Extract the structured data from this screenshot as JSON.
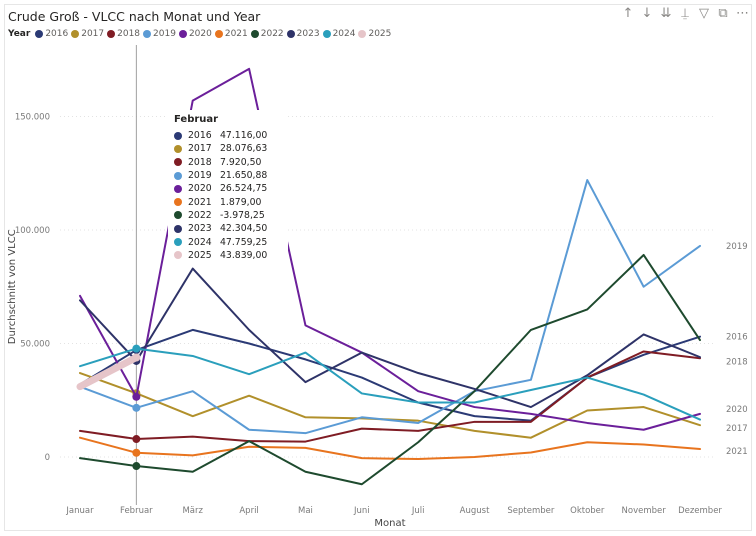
{
  "visual": {
    "title": "Crude Groß - VLCC nach Monat und Year",
    "toolbar": [
      {
        "name": "sort-up-icon",
        "glyph": "↑"
      },
      {
        "name": "sort-down-icon",
        "glyph": "↓"
      },
      {
        "name": "expand-all-icon",
        "glyph": "⇊"
      },
      {
        "name": "hierarchy-icon",
        "glyph": "⍊"
      },
      {
        "name": "filter-icon",
        "glyph": "▽"
      },
      {
        "name": "focus-mode-icon",
        "glyph": "⧉"
      },
      {
        "name": "more-options-icon",
        "glyph": "⋯"
      }
    ]
  },
  "tooltip": {
    "header": "Februar",
    "rows": [
      {
        "year": "2016",
        "value": "47.116,00"
      },
      {
        "year": "2017",
        "value": "28.076,63"
      },
      {
        "year": "2018",
        "value": "7.920,50"
      },
      {
        "year": "2019",
        "value": "21.650,88"
      },
      {
        "year": "2020",
        "value": "26.524,75"
      },
      {
        "year": "2021",
        "value": "1.879,00"
      },
      {
        "year": "2022",
        "value": "-3.978,25"
      },
      {
        "year": "2023",
        "value": "42.304,50"
      },
      {
        "year": "2024",
        "value": "47.759,25"
      },
      {
        "year": "2025",
        "value": "43.839,00"
      }
    ]
  },
  "chart_data": {
    "type": "line",
    "title": "Crude Groß - VLCC nach Monat und Year",
    "xlabel": "Monat",
    "ylabel": "Durchschnitt von VLCC",
    "legend_title": "Year",
    "legend_position": "top-left",
    "categories": [
      "Januar",
      "Februar",
      "März",
      "April",
      "Mai",
      "Juni",
      "Juli",
      "August",
      "September",
      "Oktober",
      "November",
      "Dezember"
    ],
    "ylim": [
      -14000,
      178000
    ],
    "yticks": [
      0,
      50000,
      100000,
      150000
    ],
    "ytick_labels": [
      "0",
      "50.000",
      "100.000",
      "150.000"
    ],
    "grid": "horizontal dotted",
    "hover_category": "Februar",
    "series": [
      {
        "name": "2016",
        "color": "#2B3A75",
        "values": [
          32000,
          47116,
          56000,
          50000,
          43000,
          35000,
          24000,
          18000,
          16000,
          35000,
          45000,
          53000
        ],
        "end_label": true
      },
      {
        "name": "2017",
        "color": "#B1902B",
        "values": [
          37000,
          28077,
          18000,
          27000,
          17500,
          17000,
          16000,
          11500,
          8500,
          20500,
          22000,
          14000
        ],
        "end_label": true
      },
      {
        "name": "2018",
        "color": "#7F1C24",
        "values": [
          11500,
          7920,
          9000,
          7000,
          6800,
          12500,
          11500,
          15500,
          15500,
          35000,
          46500,
          43500
        ],
        "end_label": true
      },
      {
        "name": "2019",
        "color": "#5B9BD5",
        "values": [
          31000,
          21651,
          29000,
          12000,
          10500,
          17500,
          15000,
          29000,
          34000,
          122000,
          75000,
          93000
        ],
        "end_label": true
      },
      {
        "name": "2020",
        "color": "#6B1F9A",
        "values": [
          71000,
          26525,
          157000,
          171000,
          58000,
          46000,
          29000,
          22000,
          19000,
          15000,
          12000,
          19000
        ],
        "end_label": true
      },
      {
        "name": "2021",
        "color": "#E8741E",
        "values": [
          8500,
          1879,
          700,
          4500,
          4000,
          -500,
          -900,
          0,
          2000,
          6500,
          5500,
          3500
        ],
        "end_label": true
      },
      {
        "name": "2022",
        "color": "#1E4A2E",
        "values": [
          -500,
          -3978,
          -6500,
          7000,
          -6500,
          -12000,
          6500,
          29000,
          56000,
          65000,
          89000,
          51500
        ],
        "end_label": false
      },
      {
        "name": "2023",
        "color": "#2E3368",
        "values": [
          69000,
          42305,
          83000,
          56000,
          33000,
          46000,
          37000,
          30000,
          22000,
          36000,
          54000,
          44000
        ],
        "end_label": false
      },
      {
        "name": "2024",
        "color": "#2A9FBC",
        "values": [
          40000,
          47759,
          44500,
          36500,
          46000,
          28000,
          24000,
          24000,
          29500,
          35000,
          27500,
          16500
        ],
        "end_label": false
      },
      {
        "name": "2025",
        "color": "#E6C5C9",
        "values": [
          31000,
          43839,
          null,
          null,
          null,
          null,
          null,
          null,
          null,
          null,
          null,
          null
        ],
        "end_label": false
      }
    ]
  }
}
